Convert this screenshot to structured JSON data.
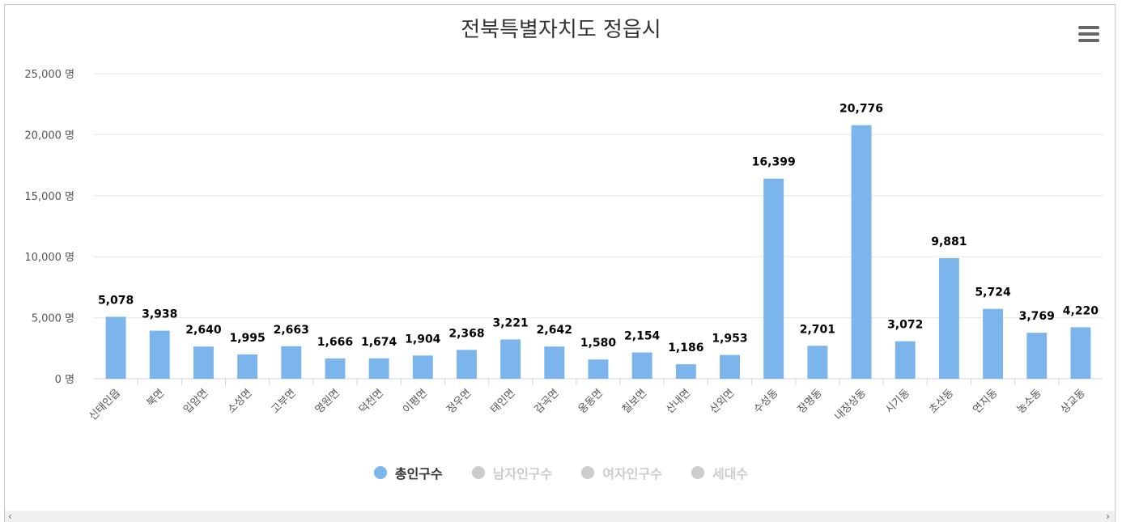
{
  "chart_data": {
    "type": "bar",
    "title": "전북특별자치도 정읍시",
    "categories": [
      "신태인읍",
      "북면",
      "입암면",
      "소성면",
      "고부면",
      "영원면",
      "덕천면",
      "이평면",
      "정우면",
      "태인면",
      "감곡면",
      "옹동면",
      "칠보면",
      "산내면",
      "산외면",
      "수성동",
      "장명동",
      "내장상동",
      "시기동",
      "초산동",
      "연지동",
      "농소동",
      "상교동"
    ],
    "series": [
      {
        "name": "총인구수",
        "values": [
          5078,
          3938,
          2640,
          1995,
          2663,
          1666,
          1674,
          1904,
          2368,
          3221,
          2642,
          1580,
          2154,
          1186,
          1953,
          16399,
          2701,
          20776,
          3072,
          9881,
          5724,
          3769,
          4220
        ]
      }
    ],
    "data_labels": [
      "5,078",
      "3,938",
      "2,640",
      "1,995",
      "2,663",
      "1,666",
      "1,674",
      "1,904",
      "2,368",
      "3,221",
      "2,642",
      "1,580",
      "2,154",
      "1,186",
      "1,953",
      "16,399",
      "2,701",
      "20,776",
      "3,072",
      "9,881",
      "5,724",
      "3,769",
      "4,220"
    ],
    "ylim": [
      0,
      25000
    ],
    "y_ticks": [
      0,
      5000,
      10000,
      15000,
      20000,
      25000
    ],
    "y_tick_labels": [
      "0 명",
      "5,000 명",
      "10,000 명",
      "15,000 명",
      "20,000 명",
      "25,000 명"
    ],
    "grid": true,
    "legend_position": "bottom",
    "bar_color": "#7cb5ec"
  },
  "legend": {
    "items": [
      {
        "label": "총인구수",
        "color": "#7cb5ec",
        "active": true
      },
      {
        "label": "남자인구수",
        "color": "#cccccc",
        "active": false
      },
      {
        "label": "여자인구수",
        "color": "#cccccc",
        "active": false
      },
      {
        "label": "세대수",
        "color": "#cccccc",
        "active": false
      }
    ]
  },
  "menu": {
    "icon": "hamburger-menu-icon"
  }
}
